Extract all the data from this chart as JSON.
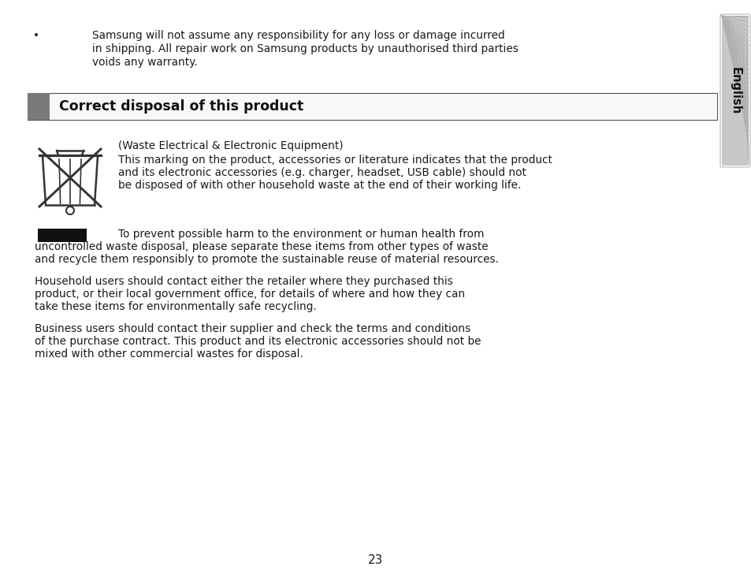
{
  "bg_color": "#ffffff",
  "page_number": "23",
  "bullet_text_line1": "Samsung will not assume any responsibility for any loss or damage incurred",
  "bullet_text_line2": "in shipping. All repair work on Samsung products by unauthorised third parties",
  "bullet_text_line3": "voids any warranty.",
  "section_title": "Correct disposal of this product",
  "section_bar_color": "#7a7a7a",
  "weee_subtitle": "(Waste Electrical & Electronic Equipment)",
  "weee_para1_line1": "This marking on the product, accessories or literature indicates that the product",
  "weee_para1_line2": "and its electronic accessories (e.g. charger, headset, USB cable) should not",
  "weee_para1_line3": "be disposed of with other household waste at the end of their working life.",
  "weee_para2_line1": "    To prevent possible harm to the environment or human health from",
  "weee_para2_line2": "uncontrolled waste disposal, please separate these items from other types of waste",
  "weee_para2_line3": "and recycle them responsibly to promote the sustainable reuse of material resources.",
  "weee_para3_line1": "Household users should contact either the retailer where they purchased this",
  "weee_para3_line2": "product, or their local government office, for details of where and how they can",
  "weee_para3_line3": "take these items for environmentally safe recycling.",
  "weee_para4_line1": "Business users should contact their supplier and check the terms and conditions",
  "weee_para4_line2": "of the purchase contract. This product and its electronic accessories should not be",
  "weee_para4_line3": "mixed with other commercial wastes for disposal.",
  "sidebar_label": "English",
  "text_color": "#1a1a1a",
  "font_size_body": 9.8,
  "font_size_title": 12.5,
  "font_size_page": 11
}
